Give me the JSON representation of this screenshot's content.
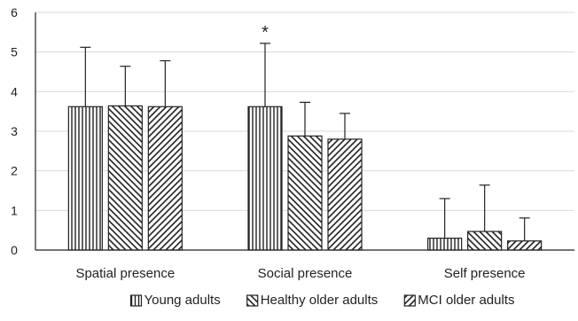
{
  "chart_data": {
    "type": "bar",
    "title": "",
    "xlabel": "",
    "ylabel": "",
    "ylim": [
      0,
      6
    ],
    "yticks": [
      0,
      1,
      2,
      3,
      4,
      5,
      6
    ],
    "grid": "horizontal",
    "legend_position": "bottom",
    "categories": [
      "Spatial presence",
      "Social presence",
      "Self presence"
    ],
    "series": [
      {
        "name": "Young adults",
        "pattern": "vertical-stripes",
        "values": [
          3.62,
          3.62,
          0.3
        ],
        "error": [
          1.5,
          1.6,
          1.0
        ]
      },
      {
        "name": "Healthy older adults",
        "pattern": "backslash-diagonal",
        "values": [
          3.64,
          2.88,
          0.47
        ],
        "error": [
          1.0,
          0.85,
          1.17
        ]
      },
      {
        "name": "MCI older adults",
        "pattern": "forward-diagonal",
        "values": [
          3.62,
          2.8,
          0.23
        ],
        "error": [
          1.16,
          0.65,
          0.58
        ]
      }
    ],
    "annotations": [
      {
        "text": "*",
        "category": "Social presence",
        "series": "Young adults"
      }
    ],
    "colors": {
      "grid": "#d9d9d9",
      "axis": "#222222",
      "bar_stroke": "#222222"
    }
  }
}
